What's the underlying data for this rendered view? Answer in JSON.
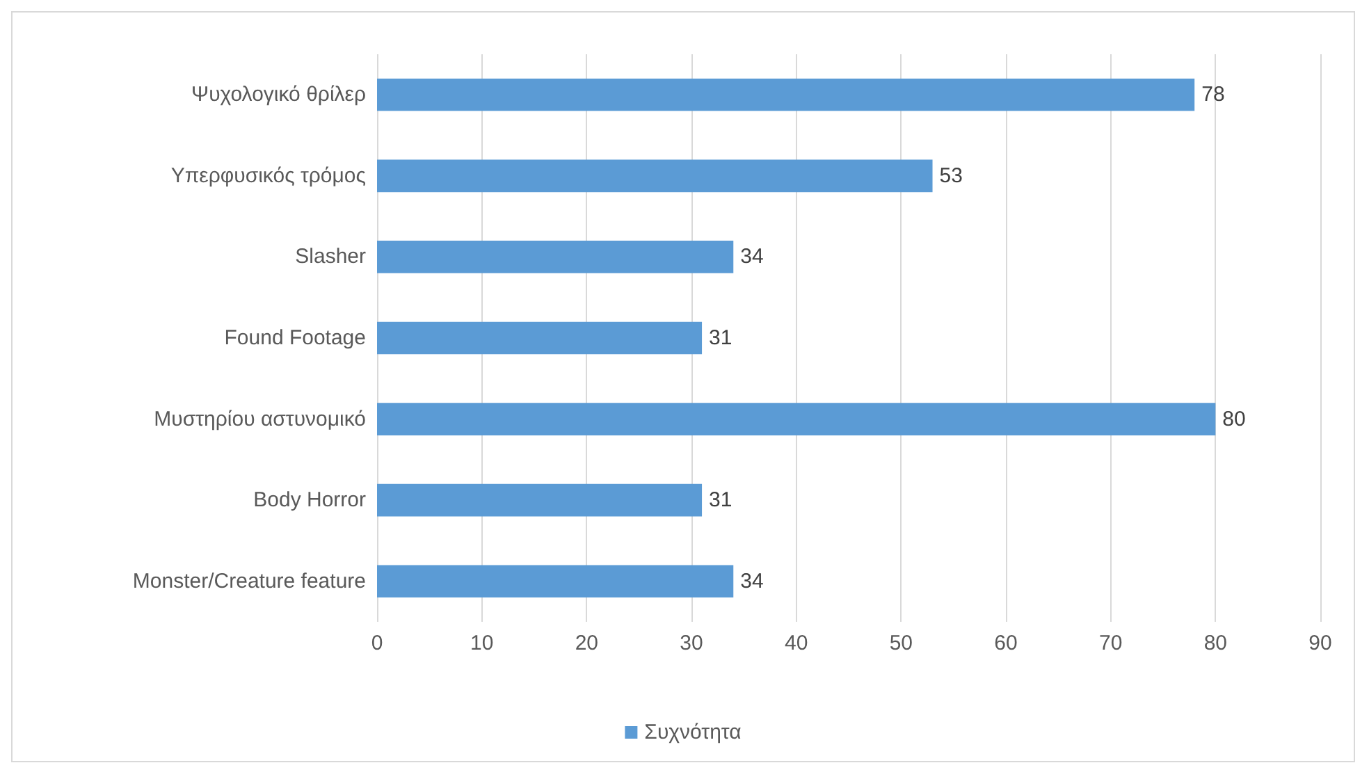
{
  "chart_data": {
    "type": "bar",
    "orientation": "horizontal",
    "categories": [
      "Ψυχολογικό θρίλερ",
      "Υπερφυσικός τρόμος",
      "Slasher",
      "Found Footage",
      "Μυστηρίου αστυνομικό",
      "Body Horror",
      "Monster/Creature feature"
    ],
    "series": [
      {
        "name": "Συχνότητα",
        "color": "#5b9bd5",
        "values": [
          78,
          53,
          34,
          31,
          80,
          31,
          34
        ]
      }
    ],
    "xlim": [
      0,
      90
    ],
    "xticks": [
      0,
      10,
      20,
      30,
      40,
      50,
      60,
      70,
      80,
      90
    ],
    "grid": "x",
    "legend": "bottom",
    "data_labels": true
  }
}
